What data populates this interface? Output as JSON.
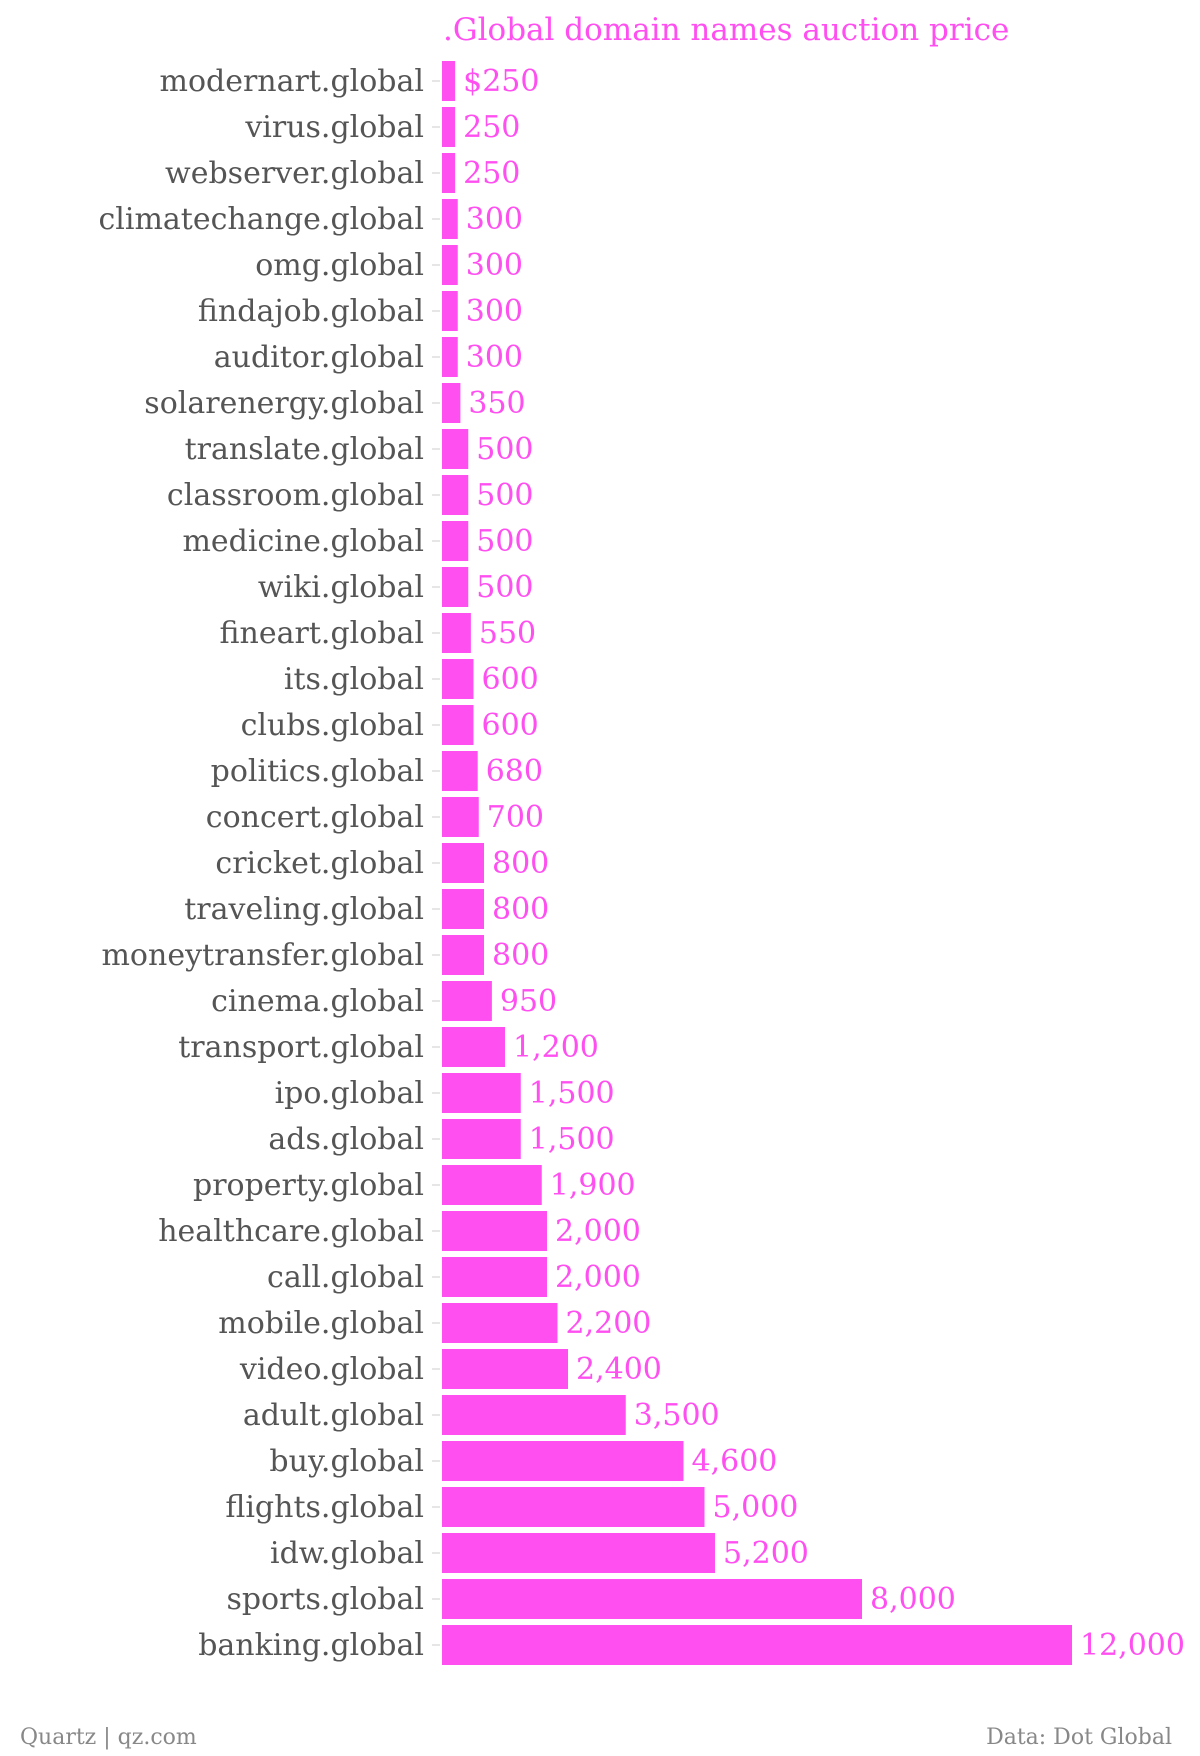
{
  "chart_data": {
    "type": "bar",
    "orientation": "horizontal",
    "title": ".Global domain names auction price",
    "categories": [
      "modernart.global",
      "virus.global",
      "webserver.global",
      "climatechange.global",
      "omg.global",
      "findajob.global",
      "auditor.global",
      "solarenergy.global",
      "translate.global",
      "classroom.global",
      "medicine.global",
      "wiki.global",
      "fineart.global",
      "its.global",
      "clubs.global",
      "politics.global",
      "concert.global",
      "cricket.global",
      "traveling.global",
      "moneytransfer.global",
      "cinema.global",
      "transport.global",
      "ipo.global",
      "ads.global",
      "property.global",
      "healthcare.global",
      "call.global",
      "mobile.global",
      "video.global",
      "adult.global",
      "buy.global",
      "flights.global",
      "idw.global",
      "sports.global",
      "banking.global"
    ],
    "values": [
      250,
      250,
      250,
      300,
      300,
      300,
      300,
      350,
      500,
      500,
      500,
      500,
      550,
      600,
      600,
      680,
      700,
      800,
      800,
      800,
      950,
      1200,
      1500,
      1500,
      1900,
      2000,
      2000,
      2200,
      2400,
      3500,
      4600,
      5000,
      5200,
      8000,
      12000
    ],
    "value_labels": [
      "$250",
      "250",
      "250",
      "300",
      "300",
      "300",
      "300",
      "350",
      "500",
      "500",
      "500",
      "500",
      "550",
      "600",
      "600",
      "680",
      "700",
      "800",
      "800",
      "800",
      "950",
      "1,200",
      "1,500",
      "1,500",
      "1,900",
      "2,000",
      "2,000",
      "2,200",
      "2,400",
      "3,500",
      "4,600",
      "5,000",
      "5,200",
      "8,000",
      "12,000"
    ],
    "xlim": [
      0,
      12000
    ],
    "grid": false,
    "legend": "none"
  },
  "colors": {
    "bar": "#ff4ff0",
    "title": "#ff4ff0",
    "value_label": "#ff4ff0",
    "category_label": "#555555",
    "footer": "#888888"
  },
  "footer": {
    "source_left": "Quartz | qz.com",
    "source_right": "Data: Dot Global"
  }
}
